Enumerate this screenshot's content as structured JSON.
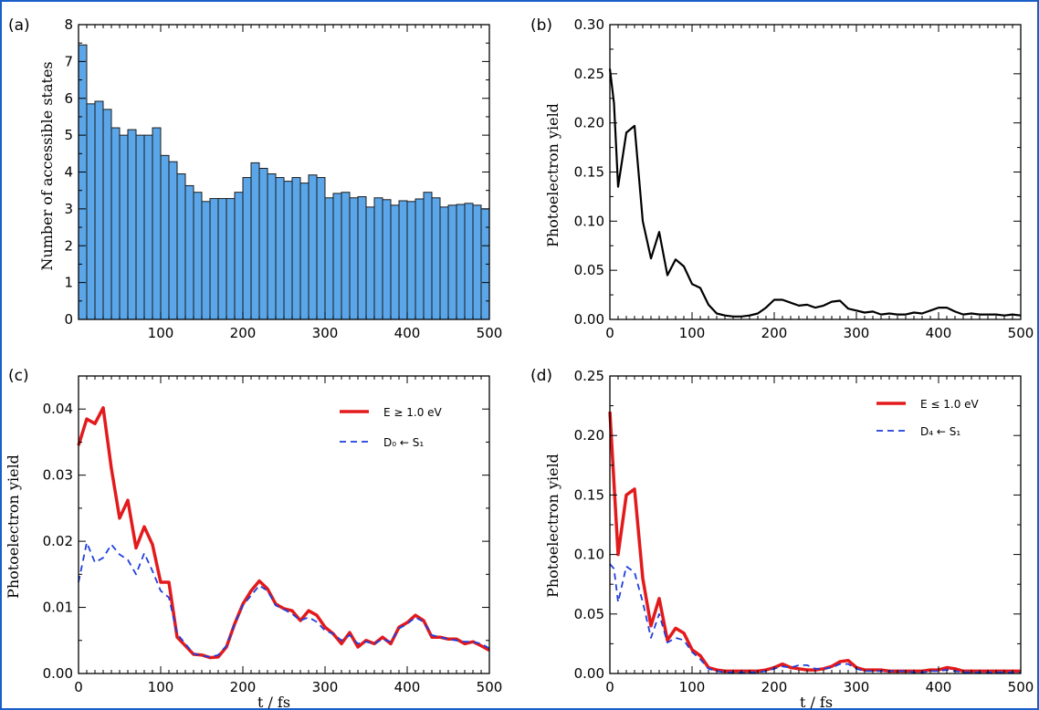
{
  "colors": {
    "border": "#1a5fc8",
    "bar_fill": "#5aa6e8",
    "bar_edge": "#1c1c1c",
    "line_black": "#000000",
    "line_red": "#e31a1c",
    "line_blue": "#1f3fdc"
  },
  "chart_data": [
    {
      "id": "a",
      "panel_label": "(a)",
      "type": "bar",
      "ylabel": "Number of accessible states",
      "xlabel": "",
      "xlim": [
        0,
        500
      ],
      "ylim": [
        0,
        8
      ],
      "xticks": [
        100,
        200,
        300,
        400,
        500
      ],
      "yticks": [
        0,
        1,
        2,
        3,
        4,
        5,
        6,
        7,
        8
      ],
      "bin_width": 10,
      "x": [
        0,
        10,
        20,
        30,
        40,
        50,
        60,
        70,
        80,
        90,
        100,
        110,
        120,
        130,
        140,
        150,
        160,
        170,
        180,
        190,
        200,
        210,
        220,
        230,
        240,
        250,
        260,
        270,
        280,
        290,
        300,
        310,
        320,
        330,
        340,
        350,
        360,
        370,
        380,
        390,
        400,
        410,
        420,
        430,
        440,
        450,
        460,
        470,
        480,
        490
      ],
      "values": [
        7.45,
        5.85,
        5.92,
        5.7,
        5.2,
        5.0,
        5.15,
        5.0,
        5.0,
        5.2,
        4.45,
        4.28,
        3.95,
        3.63,
        3.45,
        3.2,
        3.28,
        3.28,
        3.28,
        3.45,
        3.85,
        4.25,
        4.1,
        3.95,
        3.85,
        3.75,
        3.85,
        3.7,
        3.92,
        3.85,
        3.3,
        3.42,
        3.45,
        3.3,
        3.33,
        3.05,
        3.3,
        3.25,
        3.1,
        3.22,
        3.2,
        3.27,
        3.45,
        3.3,
        3.05,
        3.1,
        3.12,
        3.15,
        3.1,
        3.0
      ]
    },
    {
      "id": "b",
      "panel_label": "(b)",
      "type": "line",
      "ylabel": "Photoelectron yield",
      "xlabel": "",
      "xlim": [
        0,
        500
      ],
      "ylim": [
        0,
        0.3
      ],
      "xticks": [
        0,
        100,
        200,
        300,
        400,
        500
      ],
      "yticks": [
        0.0,
        0.05,
        0.1,
        0.15,
        0.2,
        0.25,
        0.3
      ],
      "ytick_labels": [
        "0.00",
        "0.05",
        "0.10",
        "0.15",
        "0.20",
        "0.25",
        "0.30"
      ],
      "series": [
        {
          "color": "#000000",
          "style": "solid",
          "width": 2.2,
          "x": [
            0,
            5,
            10,
            20,
            30,
            40,
            50,
            60,
            70,
            80,
            90,
            100,
            110,
            120,
            130,
            140,
            150,
            160,
            170,
            180,
            190,
            200,
            210,
            220,
            230,
            240,
            250,
            260,
            270,
            280,
            290,
            300,
            310,
            320,
            330,
            340,
            350,
            360,
            370,
            380,
            390,
            400,
            410,
            420,
            430,
            440,
            450,
            460,
            470,
            480,
            490,
            500
          ],
          "values": [
            0.255,
            0.22,
            0.135,
            0.19,
            0.197,
            0.1,
            0.062,
            0.089,
            0.045,
            0.061,
            0.054,
            0.036,
            0.032,
            0.015,
            0.006,
            0.004,
            0.003,
            0.003,
            0.004,
            0.006,
            0.012,
            0.02,
            0.02,
            0.017,
            0.014,
            0.015,
            0.012,
            0.014,
            0.018,
            0.019,
            0.011,
            0.009,
            0.007,
            0.008,
            0.005,
            0.006,
            0.005,
            0.005,
            0.007,
            0.006,
            0.009,
            0.012,
            0.012,
            0.008,
            0.005,
            0.006,
            0.005,
            0.005,
            0.005,
            0.004,
            0.005,
            0.004
          ]
        }
      ]
    },
    {
      "id": "c",
      "panel_label": "(c)",
      "type": "line",
      "ylabel": "Photoelectron yield",
      "xlabel": "t / fs",
      "xlim": [
        0,
        500
      ],
      "ylim": [
        0,
        0.045
      ],
      "xticks": [
        0,
        100,
        200,
        300,
        400,
        500
      ],
      "yticks": [
        0.0,
        0.01,
        0.02,
        0.03,
        0.04
      ],
      "ytick_labels": [
        "0.00",
        "0.01",
        "0.02",
        "0.03",
        "0.04"
      ],
      "legend": [
        "E ≥ 1.0 eV",
        "D₀ ← S₁"
      ],
      "series": [
        {
          "name": "E ≥ 1.0 eV",
          "color": "#e31a1c",
          "style": "solid",
          "width": 3.5,
          "x": [
            0,
            10,
            20,
            30,
            40,
            50,
            60,
            70,
            80,
            90,
            100,
            110,
            120,
            130,
            140,
            150,
            160,
            170,
            180,
            190,
            200,
            210,
            220,
            230,
            240,
            250,
            260,
            270,
            280,
            290,
            300,
            310,
            320,
            330,
            340,
            350,
            360,
            370,
            380,
            390,
            400,
            410,
            420,
            430,
            440,
            450,
            460,
            470,
            480,
            490,
            500
          ],
          "values": [
            0.0345,
            0.0385,
            0.0378,
            0.0402,
            0.031,
            0.0235,
            0.0262,
            0.019,
            0.0222,
            0.0195,
            0.0138,
            0.0138,
            0.0055,
            0.0042,
            0.0029,
            0.0028,
            0.0024,
            0.0025,
            0.004,
            0.0075,
            0.0105,
            0.0125,
            0.014,
            0.0128,
            0.0105,
            0.0098,
            0.0095,
            0.008,
            0.0095,
            0.0088,
            0.007,
            0.006,
            0.0045,
            0.0062,
            0.004,
            0.005,
            0.0045,
            0.0055,
            0.0045,
            0.007,
            0.0077,
            0.0088,
            0.008,
            0.0055,
            0.0055,
            0.0052,
            0.0052,
            0.0045,
            0.0048,
            0.0042,
            0.0035
          ]
        },
        {
          "name": "D₀ ← S₁",
          "color": "#1f3fdc",
          "style": "dashed",
          "width": 1.8,
          "x": [
            0,
            10,
            20,
            30,
            40,
            50,
            60,
            70,
            80,
            90,
            100,
            110,
            120,
            130,
            140,
            150,
            160,
            170,
            180,
            190,
            200,
            210,
            220,
            230,
            240,
            250,
            260,
            270,
            280,
            290,
            300,
            310,
            320,
            330,
            340,
            350,
            360,
            370,
            380,
            390,
            400,
            410,
            420,
            430,
            440,
            450,
            460,
            470,
            480,
            490,
            500
          ],
          "values": [
            0.0138,
            0.0198,
            0.0168,
            0.0175,
            0.0195,
            0.018,
            0.0172,
            0.015,
            0.0182,
            0.0155,
            0.0125,
            0.0115,
            0.006,
            0.0045,
            0.003,
            0.0027,
            0.0025,
            0.0028,
            0.0042,
            0.0075,
            0.0103,
            0.0118,
            0.0133,
            0.0125,
            0.0103,
            0.0097,
            0.009,
            0.008,
            0.0085,
            0.0078,
            0.0065,
            0.006,
            0.005,
            0.0058,
            0.0045,
            0.0048,
            0.0045,
            0.0052,
            0.0048,
            0.0068,
            0.0075,
            0.0085,
            0.0078,
            0.0058,
            0.0055,
            0.0052,
            0.005,
            0.0048,
            0.0048,
            0.0045,
            0.0038
          ]
        }
      ]
    },
    {
      "id": "d",
      "panel_label": "(d)",
      "type": "line",
      "ylabel": "Photoelectron yield",
      "xlabel": "t / fs",
      "xlim": [
        0,
        500
      ],
      "ylim": [
        0,
        0.25
      ],
      "xticks": [
        0,
        100,
        200,
        300,
        400,
        500
      ],
      "yticks": [
        0.0,
        0.05,
        0.1,
        0.15,
        0.2,
        0.25
      ],
      "ytick_labels": [
        "0.00",
        "0.05",
        "0.10",
        "0.15",
        "0.20",
        "0.25"
      ],
      "legend": [
        "E ≤ 1.0 eV",
        "D₄ ← S₁"
      ],
      "series": [
        {
          "name": "E ≤ 1.0 eV",
          "color": "#e31a1c",
          "style": "solid",
          "width": 3.5,
          "x": [
            0,
            5,
            10,
            20,
            30,
            40,
            50,
            60,
            70,
            80,
            90,
            100,
            110,
            120,
            130,
            140,
            150,
            160,
            170,
            180,
            190,
            200,
            210,
            220,
            230,
            240,
            250,
            260,
            270,
            280,
            290,
            300,
            310,
            320,
            330,
            340,
            350,
            360,
            370,
            380,
            390,
            400,
            410,
            420,
            430,
            440,
            450,
            460,
            470,
            480,
            490,
            500
          ],
          "values": [
            0.22,
            0.16,
            0.1,
            0.15,
            0.155,
            0.08,
            0.04,
            0.063,
            0.028,
            0.038,
            0.034,
            0.02,
            0.015,
            0.005,
            0.003,
            0.002,
            0.002,
            0.002,
            0.002,
            0.002,
            0.003,
            0.005,
            0.008,
            0.005,
            0.004,
            0.003,
            0.003,
            0.004,
            0.006,
            0.01,
            0.011,
            0.005,
            0.003,
            0.003,
            0.003,
            0.002,
            0.002,
            0.002,
            0.002,
            0.002,
            0.003,
            0.003,
            0.005,
            0.004,
            0.002,
            0.002,
            0.002,
            0.002,
            0.002,
            0.002,
            0.002,
            0.002
          ]
        },
        {
          "name": "D₄ ← S₁",
          "color": "#1f3fdc",
          "style": "dashed",
          "width": 1.8,
          "x": [
            0,
            5,
            10,
            20,
            30,
            40,
            50,
            60,
            70,
            80,
            90,
            100,
            110,
            120,
            130,
            140,
            150,
            160,
            170,
            180,
            190,
            200,
            210,
            220,
            230,
            240,
            250,
            260,
            270,
            280,
            290,
            300,
            310,
            320,
            330,
            340,
            350,
            360,
            370,
            380,
            390,
            400,
            410,
            420,
            430,
            440,
            450,
            460,
            470,
            480,
            490,
            500
          ],
          "values": [
            0.092,
            0.088,
            0.06,
            0.09,
            0.085,
            0.06,
            0.03,
            0.05,
            0.026,
            0.03,
            0.028,
            0.018,
            0.012,
            0.004,
            0.002,
            0.001,
            0.001,
            0.001,
            0.001,
            0.001,
            0.002,
            0.004,
            0.006,
            0.005,
            0.007,
            0.007,
            0.004,
            0.004,
            0.005,
            0.008,
            0.008,
            0.004,
            0.002,
            0.002,
            0.002,
            0.002,
            0.002,
            0.002,
            0.001,
            0.001,
            0.002,
            0.002,
            0.003,
            0.002,
            0.001,
            0.001,
            0.001,
            0.001,
            0.001,
            0.001,
            0.001,
            0.001
          ]
        }
      ]
    }
  ]
}
